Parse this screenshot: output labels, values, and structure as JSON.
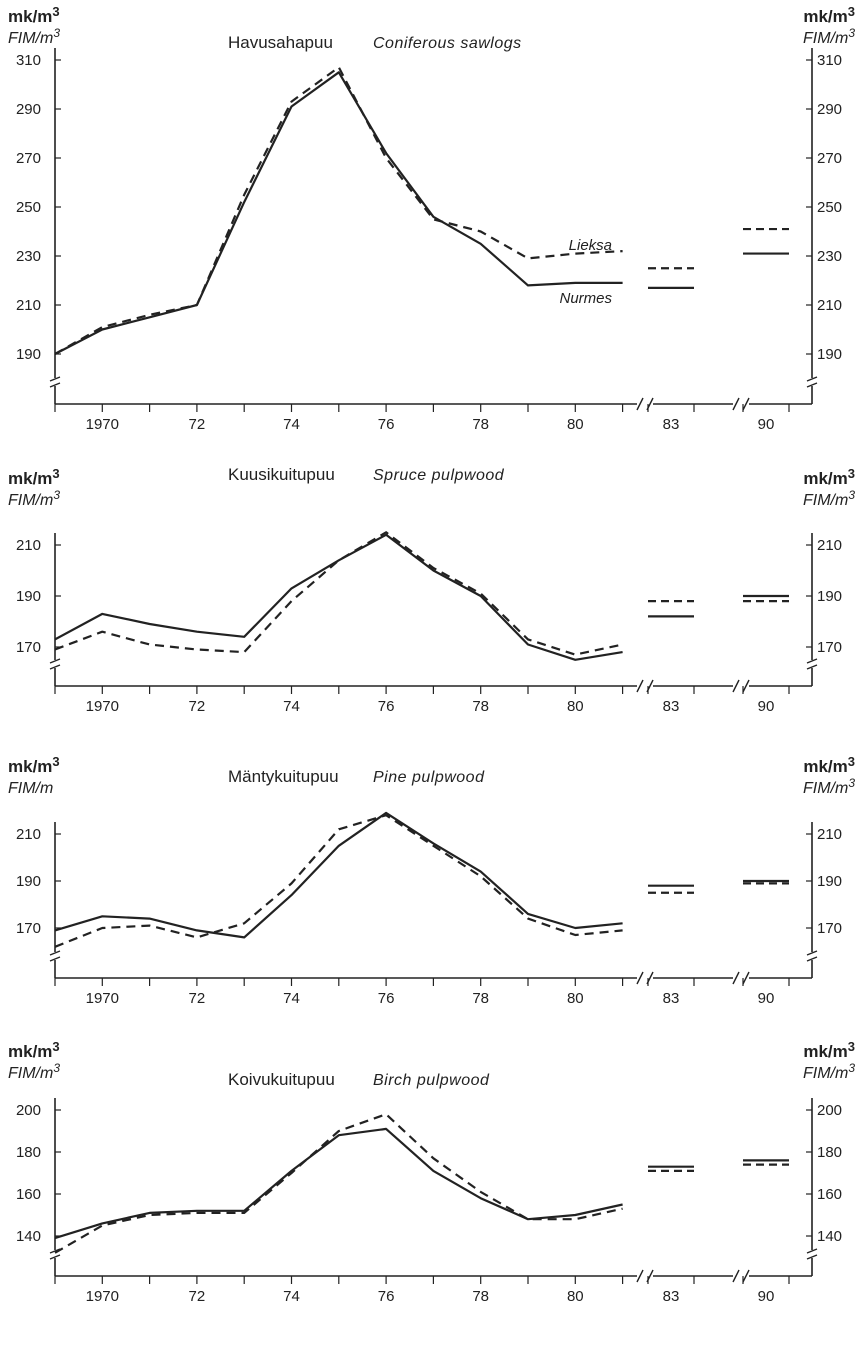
{
  "chart_data": [
    {
      "type": "line",
      "title": "Havusahapuu",
      "subtitle": "Coniferous sawlogs",
      "units": [
        "mk/m3",
        "FIM/m3"
      ],
      "right_units": [
        "mk/m3",
        "FIM/m3"
      ],
      "x_tick_labels": [
        "1970",
        "72",
        "74",
        "76",
        "78",
        "80",
        "83",
        "90"
      ],
      "y_ticks": [
        190,
        210,
        230,
        250,
        270,
        290,
        310
      ],
      "ylim": [
        190,
        310
      ],
      "x": [
        1969,
        1970,
        1971,
        1972,
        1973,
        1974,
        1975,
        1976,
        1977,
        1978,
        1979,
        1980,
        1981
      ],
      "series": [
        {
          "name": "Nurmes",
          "style": "solid",
          "values": [
            190,
            200,
            205,
            210,
            252,
            291,
            305,
            272,
            246,
            235,
            218,
            219,
            219
          ],
          "y1983": 217,
          "y1990": 231
        },
        {
          "name": "Lieksa",
          "style": "dashed",
          "values": [
            190,
            201,
            206,
            210,
            255,
            293,
            307,
            270,
            245,
            240,
            229,
            231,
            232
          ],
          "y1983": 225,
          "y1990": 241
        }
      ]
    },
    {
      "type": "line",
      "title": "Kuusikuitupuu",
      "subtitle": "Spruce pulpwood",
      "units": [
        "mk/m3",
        "FIM/m3"
      ],
      "right_units": [
        "mk/m3",
        "FIM/m3"
      ],
      "x_tick_labels": [
        "1970",
        "72",
        "74",
        "76",
        "78",
        "80",
        "83",
        "90"
      ],
      "y_ticks": [
        170,
        190,
        210
      ],
      "ylim": [
        150,
        220
      ],
      "x": [
        1969,
        1970,
        1971,
        1972,
        1973,
        1974,
        1975,
        1976,
        1977,
        1978,
        1979,
        1980,
        1981
      ],
      "series": [
        {
          "style": "solid",
          "values": [
            173,
            183,
            179,
            176,
            174,
            193,
            204,
            214,
            200,
            190,
            171,
            165,
            168
          ],
          "y1983": 182,
          "y1990": 190
        },
        {
          "style": "dashed",
          "values": [
            169,
            176,
            171,
            169,
            168,
            188,
            204,
            215,
            201,
            191,
            173,
            167,
            171
          ],
          "y1983": 188,
          "y1990": 188
        }
      ]
    },
    {
      "type": "line",
      "title": "Mäntykuitupuu",
      "subtitle": "Pine pulpwood",
      "units": [
        "mk/m3",
        "FIM/m"
      ],
      "right_units": [
        "mk/m3",
        "FIM/m3"
      ],
      "x_tick_labels": [
        "1970",
        "72",
        "74",
        "76",
        "78",
        "80",
        "83",
        "90"
      ],
      "y_ticks": [
        170,
        190,
        210
      ],
      "ylim": [
        150,
        220
      ],
      "x": [
        1969,
        1970,
        1971,
        1972,
        1973,
        1974,
        1975,
        1976,
        1977,
        1978,
        1979,
        1980,
        1981
      ],
      "series": [
        {
          "style": "solid",
          "values": [
            169,
            175,
            174,
            169,
            166,
            184,
            205,
            219,
            206,
            194,
            176,
            170,
            172
          ],
          "y1983": 188,
          "y1990": 190
        },
        {
          "style": "dashed",
          "values": [
            162,
            170,
            171,
            166,
            172,
            189,
            212,
            218,
            205,
            192,
            174,
            167,
            169
          ],
          "y1983": 185,
          "y1990": 189
        }
      ]
    },
    {
      "type": "line",
      "title": "Koivukuitupuu",
      "subtitle": "Birch pulpwood",
      "units": [
        "mk/m3",
        "FIM/m3"
      ],
      "right_units": [
        "mk/m3",
        "FIM/m3"
      ],
      "x_tick_labels": [
        "1970",
        "72",
        "74",
        "76",
        "78",
        "80",
        "83",
        "90"
      ],
      "y_ticks": [
        140,
        160,
        180,
        200
      ],
      "ylim": [
        120,
        210
      ],
      "x": [
        1969,
        1970,
        1971,
        1972,
        1973,
        1974,
        1975,
        1976,
        1977,
        1978,
        1979,
        1980,
        1981
      ],
      "series": [
        {
          "style": "solid",
          "values": [
            139,
            146,
            151,
            152,
            152,
            171,
            188,
            191,
            171,
            158,
            148,
            150,
            155
          ],
          "y1983": 173,
          "y1990": 176
        },
        {
          "style": "dashed",
          "values": [
            132,
            145,
            150,
            151,
            151,
            170,
            190,
            198,
            177,
            161,
            148,
            148,
            153
          ],
          "y1983": 171,
          "y1990": 174
        }
      ]
    }
  ]
}
